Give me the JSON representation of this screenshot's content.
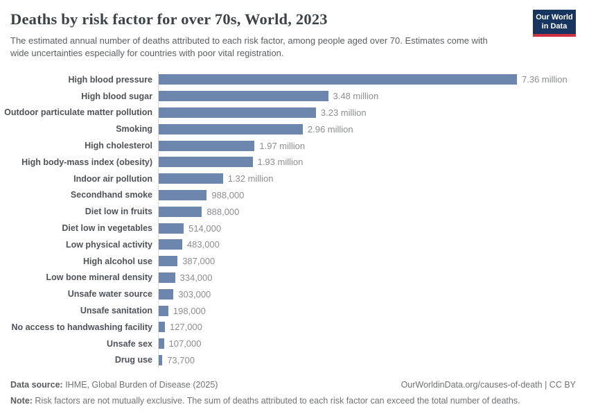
{
  "header": {
    "title": "Deaths by risk factor for over 70s, World, 2023",
    "subtitle": "The estimated annual number of deaths attributed to each risk factor, among people aged over 70. Estimates come with wide uncertainties especially for countries with poor vital registration.",
    "logo": {
      "line1": "Our World",
      "line2": "in Data"
    }
  },
  "chart_data": {
    "type": "bar",
    "orientation": "horizontal",
    "title": "Deaths by risk factor for over 70s, World, 2023",
    "xlabel": "",
    "ylabel": "",
    "xlim": [
      0,
      7360000
    ],
    "grid": false,
    "legend": "none",
    "categories": [
      "High blood pressure",
      "High blood sugar",
      "Outdoor particulate matter pollution",
      "Smoking",
      "High cholesterol",
      "High body-mass index (obesity)",
      "Indoor air pollution",
      "Secondhand smoke",
      "Diet low in fruits",
      "Diet low in vegetables",
      "Low physical activity",
      "High alcohol use",
      "Low bone mineral density",
      "Unsafe water source",
      "Unsafe sanitation",
      "No access to handwashing facility",
      "Unsafe sex",
      "Drug use"
    ],
    "values": [
      7360000,
      3480000,
      3230000,
      2960000,
      1970000,
      1930000,
      1320000,
      988000,
      888000,
      514000,
      483000,
      387000,
      334000,
      303000,
      198000,
      127000,
      107000,
      73700
    ],
    "value_labels": [
      "7.36 million",
      "3.48 million",
      "3.23 million",
      "2.96 million",
      "1.97 million",
      "1.93 million",
      "1.32 million",
      "988,000",
      "888,000",
      "514,000",
      "483,000",
      "387,000",
      "334,000",
      "303,000",
      "198,000",
      "127,000",
      "107,000",
      "73,700"
    ]
  },
  "colors": {
    "bar": "#6d86ae",
    "axis_line": "#dcdcdc",
    "logo_bg": "#17355f",
    "logo_stripe": "#d0303f"
  },
  "footer": {
    "datasource_label": "Data source:",
    "datasource_text": " IHME, Global Burden of Disease (2025)",
    "link": "OurWorldinData.org/causes-of-death | CC BY",
    "note_label": "Note:",
    "note_text": " Risk factors are not mutually exclusive. The sum of deaths attributed to each risk factor can exceed the total number of deaths."
  }
}
